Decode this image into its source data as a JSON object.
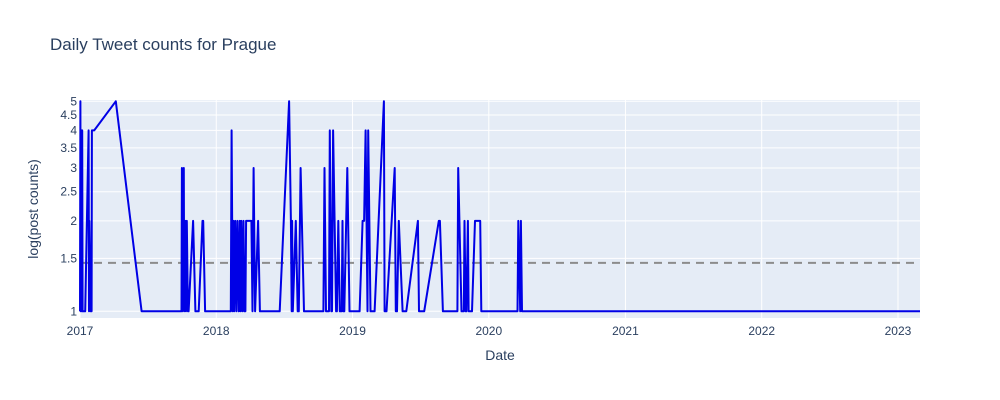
{
  "chart_data": {
    "type": "line",
    "title": "Daily Tweet counts for Prague",
    "xlabel": "Date",
    "ylabel": "log(post counts)",
    "x_ticks": [
      "2017",
      "2018",
      "2019",
      "2020",
      "2021",
      "2022",
      "2023"
    ],
    "y_ticks": [
      "1",
      "1.5",
      "2",
      "2.5",
      "3",
      "3.5",
      "4",
      "4.5",
      "5"
    ],
    "y_scale": "log",
    "xlim": [
      "2017-01-01",
      "2023-03-01"
    ],
    "ylim": [
      0.95,
      5.05
    ],
    "grid": true,
    "legend": "none",
    "colors": {
      "line": "#0000e6",
      "reference": "#8c8c8c",
      "plot_bg": "#e5ecf6",
      "grid": "#ffffff"
    },
    "reference_line": {
      "y": 1.45,
      "style": "dashed"
    },
    "series": [
      {
        "x": [
          "2017-01-01",
          "2017-01-02",
          "2017-01-03",
          "2017-01-05",
          "2017-01-06",
          "2017-01-07",
          "2017-01-08",
          "2017-01-15",
          "2017-01-24",
          "2017-01-25",
          "2017-01-26",
          "2017-01-30",
          "2017-02-01",
          "2017-02-02",
          "2017-02-05",
          "2017-02-08",
          "2017-04-07",
          "2017-06-15",
          "2017-09-30",
          "2017-10-01",
          "2017-10-02",
          "2017-10-06",
          "2017-10-07",
          "2017-10-10",
          "2017-10-12",
          "2017-10-14",
          "2017-10-17",
          "2017-10-19",
          "2017-10-31",
          "2017-11-06",
          "2017-11-08",
          "2017-11-15",
          "2017-11-25",
          "2017-11-27",
          "2017-12-02",
          "2017-12-09",
          "2018-02-09",
          "2018-02-11",
          "2018-02-14",
          "2018-02-16",
          "2018-02-18",
          "2018-02-21",
          "2018-02-24",
          "2018-02-27",
          "2018-03-02",
          "2018-03-05",
          "2018-03-07",
          "2018-03-09",
          "2018-03-12",
          "2018-03-15",
          "2018-03-17",
          "2018-03-20",
          "2018-03-22",
          "2018-04-05",
          "2018-04-08",
          "2018-04-11",
          "2018-04-15",
          "2018-04-23",
          "2018-04-28",
          "2018-05-05",
          "2018-05-25",
          "2018-06-20",
          "2018-07-15",
          "2018-07-20",
          "2018-07-22",
          "2018-07-23",
          "2018-07-25",
          "2018-08-02",
          "2018-08-07",
          "2018-08-10",
          "2018-08-15",
          "2018-08-24",
          "2018-08-27",
          "2018-09-08",
          "2018-10-15",
          "2018-10-18",
          "2018-10-22",
          "2018-10-30",
          "2018-11-01",
          "2018-11-05",
          "2018-11-07",
          "2018-11-10",
          "2018-11-18",
          "2018-11-20",
          "2018-11-24",
          "2018-11-28",
          "2018-12-03",
          "2018-12-05",
          "2018-12-07",
          "2018-12-10",
          "2018-12-18",
          "2018-12-24",
          "2019-01-15",
          "2019-01-20",
          "2019-01-28",
          "2019-02-01",
          "2019-02-05",
          "2019-02-10",
          "2019-02-12",
          "2019-02-18",
          "2019-02-26",
          "2019-03-01",
          "2019-03-26",
          "2019-03-28",
          "2019-04-02",
          "2019-04-24",
          "2019-04-27",
          "2019-04-30",
          "2019-05-05",
          "2019-05-15",
          "2019-05-18",
          "2019-05-25",
          "2019-06-25",
          "2019-06-28",
          "2019-07-05",
          "2019-07-12",
          "2019-08-20",
          "2019-08-23",
          "2019-08-31",
          "2019-10-09",
          "2019-10-11",
          "2019-10-20",
          "2019-10-26",
          "2019-10-28",
          "2019-10-31",
          "2019-11-02",
          "2019-11-06",
          "2019-11-08",
          "2019-11-17",
          "2019-11-25",
          "2019-11-29",
          "2019-12-09",
          "2019-12-12",
          "2019-12-24",
          "2020-03-18",
          "2020-03-20",
          "2020-03-25",
          "2020-03-27",
          "2020-03-30",
          "2023-03-01"
        ],
        "y": [
          1,
          5,
          1,
          4,
          1,
          4,
          1,
          1,
          4,
          1,
          2,
          1,
          1,
          4,
          4,
          4,
          5,
          1,
          1,
          3,
          1,
          3,
          1,
          2,
          1,
          2,
          1,
          1,
          2,
          1,
          1,
          1,
          2,
          2,
          1,
          1,
          1,
          4,
          1,
          2,
          1,
          2,
          1,
          2,
          1,
          2,
          1,
          2,
          1,
          2,
          1,
          1,
          2,
          2,
          1,
          3,
          1,
          2,
          1,
          1,
          1,
          1,
          5,
          2,
          1,
          2,
          1,
          2,
          1,
          1,
          3,
          1,
          1,
          1,
          1,
          3,
          1,
          1,
          4,
          1,
          1,
          4,
          1,
          1,
          2,
          1,
          1,
          2,
          1,
          1,
          3,
          1,
          1,
          1,
          2,
          2,
          4,
          1,
          4,
          1,
          1,
          1,
          5,
          1,
          1,
          3,
          1,
          1,
          2,
          1,
          1,
          1,
          2,
          1,
          1,
          1,
          2,
          2,
          1,
          1,
          3,
          1,
          1,
          2,
          1,
          1,
          2,
          1,
          1,
          2,
          2,
          2,
          1,
          1,
          1,
          2,
          1,
          2,
          1,
          1
        ]
      }
    ]
  }
}
